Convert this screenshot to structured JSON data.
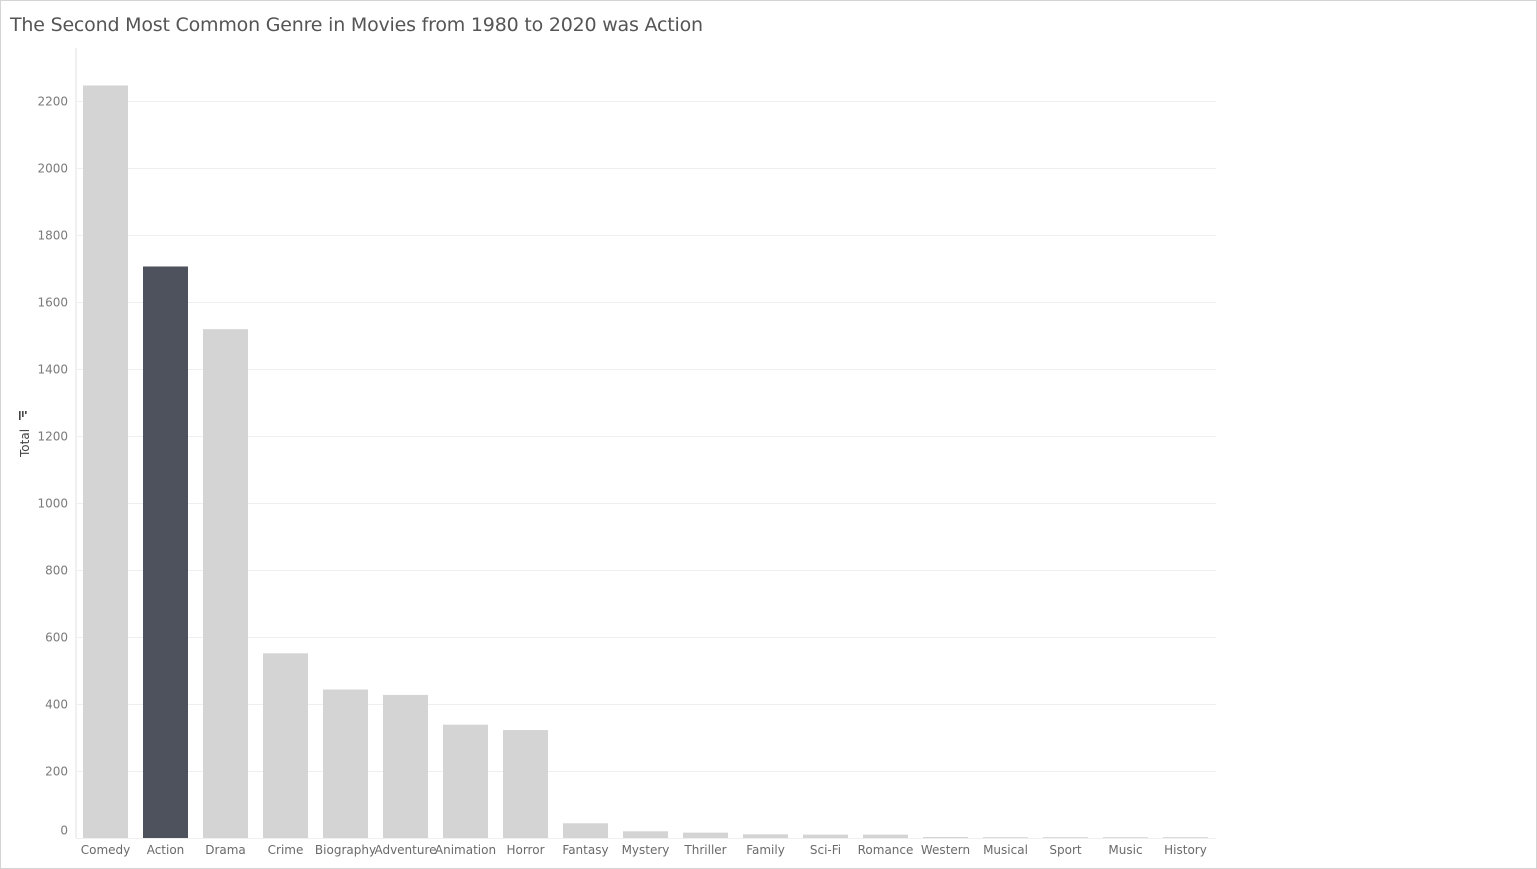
{
  "title": "The Second Most Common Genre in Movies from 1980 to 2020 was Action",
  "colors": {
    "bar": "#d4d4d4",
    "highlight": "#4d525c",
    "gridline": "#efefef",
    "axis": "#e0e0e0",
    "text": "#555555"
  },
  "icons": {
    "sort_indicator": "sort-descending-icon"
  },
  "chart_data": {
    "type": "bar",
    "title": "The Second Most Common Genre in Movies from 1980 to 2020 was Action",
    "xlabel": "",
    "ylabel": "Total",
    "ylim": [
      0,
      2300
    ],
    "yticks": [
      0,
      200,
      400,
      600,
      800,
      1000,
      1200,
      1400,
      1600,
      1800,
      2000,
      2200
    ],
    "grid": true,
    "highlight": "Action",
    "categories": [
      "Comedy",
      "Action",
      "Drama",
      "Crime",
      "Biography",
      "Adventure",
      "Animation",
      "Horror",
      "Fantasy",
      "Mystery",
      "Thriller",
      "Family",
      "Sci-Fi",
      "Romance",
      "Western",
      "Musical",
      "Sport",
      "Music",
      "History"
    ],
    "values": [
      2245,
      1705,
      1518,
      551,
      443,
      427,
      338,
      322,
      44,
      20,
      16,
      11,
      10,
      10,
      3,
      2,
      1,
      1,
      1
    ]
  }
}
